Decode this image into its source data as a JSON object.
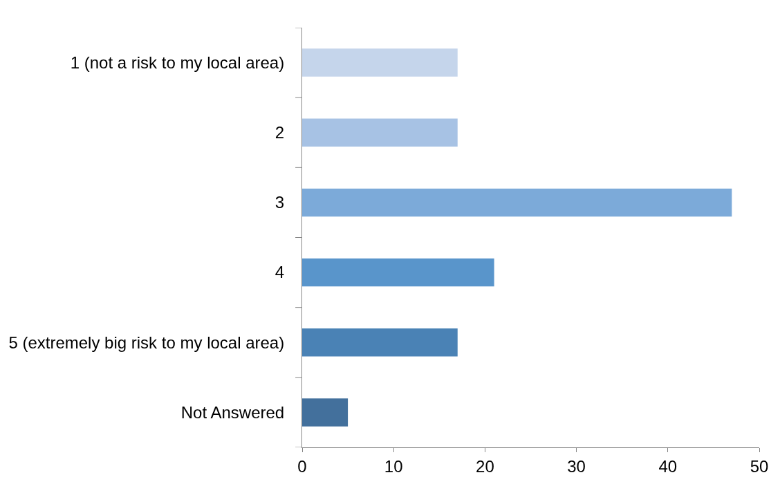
{
  "chart_data": {
    "type": "bar",
    "orientation": "horizontal",
    "categories": [
      "1 (not a risk to my local area)",
      "2",
      "3",
      "4",
      "5 (extremely big risk to my local area)",
      "Not Answered"
    ],
    "values": [
      17,
      17,
      47,
      21,
      17,
      5
    ],
    "colors": [
      "#c5d5eb",
      "#a7c2e4",
      "#7caad9",
      "#5995cb",
      "#4a82b5",
      "#43709c"
    ],
    "xlim": [
      0,
      50
    ],
    "xticks": [
      0,
      10,
      20,
      30,
      40,
      50
    ]
  }
}
